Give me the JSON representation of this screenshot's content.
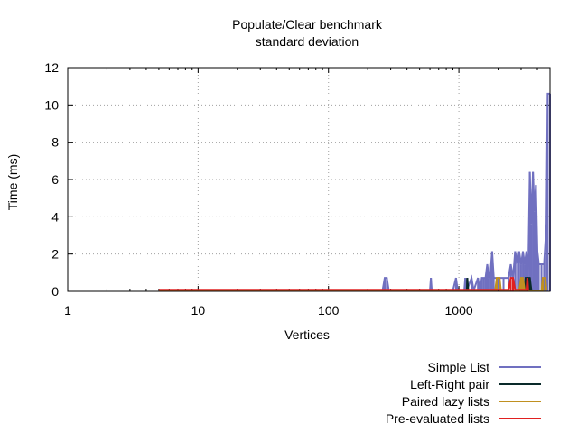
{
  "chart_data": {
    "type": "line",
    "title": "Populate/Clear benchmark",
    "subtitle": "standard deviation",
    "xlabel": "Vertices",
    "ylabel": "Time (ms)",
    "x_scale": "log",
    "xlim": [
      1,
      5000
    ],
    "ylim": [
      0,
      12
    ],
    "x_ticks": [
      1,
      10,
      100,
      1000
    ],
    "x_tick_labels": [
      "1",
      "10",
      "100",
      "1000"
    ],
    "y_ticks": [
      0,
      2,
      4,
      6,
      8,
      10,
      12
    ],
    "y_tick_labels": [
      "0",
      "2",
      "4",
      "6",
      "8",
      "10",
      "12"
    ],
    "grid": true,
    "legend_position": "bottom-right, below plot",
    "series": [
      {
        "name": "Simple List",
        "color": "#7070c0",
        "points": [
          [
            5,
            0.05
          ],
          [
            20,
            0.05
          ],
          [
            100,
            0.05
          ],
          [
            260,
            0.05
          ],
          [
            270,
            0.72
          ],
          [
            280,
            0.72
          ],
          [
            290,
            0.05
          ],
          [
            600,
            0.05
          ],
          [
            610,
            0.72
          ],
          [
            620,
            0.05
          ],
          [
            900,
            0.05
          ],
          [
            950,
            0.72
          ],
          [
            980,
            0.05
          ],
          [
            1100,
            0.05
          ],
          [
            1120,
            0.72
          ],
          [
            1150,
            0.05
          ],
          [
            1250,
            0.72
          ],
          [
            1300,
            0.05
          ],
          [
            1400,
            0.72
          ],
          [
            1450,
            0.05
          ],
          [
            1500,
            0.72
          ],
          [
            1550,
            0.72
          ],
          [
            1600,
            0.72
          ],
          [
            1650,
            1.45
          ],
          [
            1700,
            0.72
          ],
          [
            1750,
            1.08
          ],
          [
            1800,
            2.15
          ],
          [
            1850,
            0.72
          ],
          [
            2000,
            0.72
          ],
          [
            2200,
            0.72
          ],
          [
            2400,
            0.72
          ],
          [
            2500,
            1.45
          ],
          [
            2600,
            0.72
          ],
          [
            2700,
            2.15
          ],
          [
            2800,
            1.45
          ],
          [
            2900,
            2.15
          ],
          [
            3000,
            1.45
          ],
          [
            3100,
            2.15
          ],
          [
            3200,
            1.45
          ],
          [
            3300,
            2.15
          ],
          [
            3400,
            0.72
          ],
          [
            3500,
            6.4
          ],
          [
            3600,
            3.6
          ],
          [
            3700,
            6.4
          ],
          [
            3800,
            4.3
          ],
          [
            3900,
            5.7
          ],
          [
            4000,
            2.15
          ],
          [
            4100,
            1.45
          ],
          [
            4300,
            1.45
          ],
          [
            4500,
            1.45
          ],
          [
            4700,
            3.6
          ],
          [
            4800,
            10.6
          ],
          [
            5000,
            10.6
          ]
        ]
      },
      {
        "name": "Left-Right pair",
        "color": "#0a2a2a",
        "points": [
          [
            5,
            0.05
          ],
          [
            100,
            0.05
          ],
          [
            1150,
            0.05
          ],
          [
            1160,
            0.72
          ],
          [
            1180,
            0.05
          ],
          [
            3200,
            0.05
          ],
          [
            3250,
            0.72
          ],
          [
            3400,
            0.72
          ],
          [
            3500,
            0.72
          ],
          [
            3600,
            0.05
          ]
        ]
      },
      {
        "name": "Paired lazy lists",
        "color": "#c09020",
        "points": [
          [
            5,
            0.05
          ],
          [
            100,
            0.05
          ],
          [
            1900,
            0.05
          ],
          [
            1950,
            0.72
          ],
          [
            2050,
            0.72
          ],
          [
            2100,
            0.05
          ],
          [
            2900,
            0.05
          ],
          [
            3000,
            0.72
          ],
          [
            3100,
            0.72
          ],
          [
            3200,
            0.05
          ],
          [
            4300,
            0.05
          ],
          [
            4400,
            0.72
          ],
          [
            4600,
            0.72
          ],
          [
            4700,
            0.05
          ]
        ]
      },
      {
        "name": "Pre-evaluated lists",
        "color": "#e02020",
        "points": [
          [
            5,
            0.08
          ],
          [
            50,
            0.08
          ],
          [
            500,
            0.08
          ],
          [
            2400,
            0.08
          ],
          [
            2500,
            0.72
          ],
          [
            2600,
            0.72
          ],
          [
            2700,
            0.08
          ],
          [
            3300,
            0.08
          ],
          [
            3350,
            0.72
          ],
          [
            3400,
            0.08
          ]
        ]
      }
    ]
  }
}
